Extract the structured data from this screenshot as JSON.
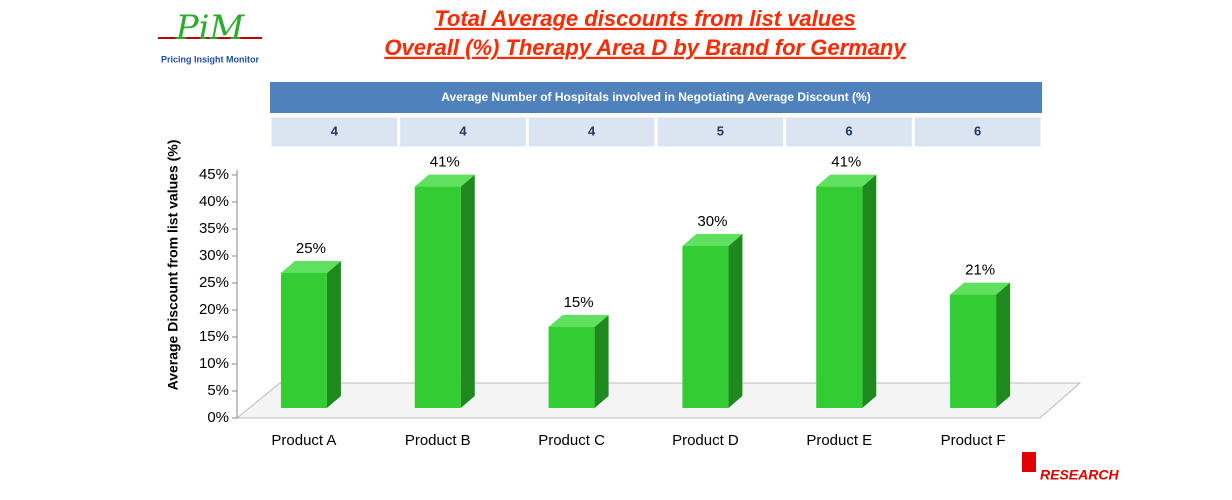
{
  "logo": {
    "mark": "PiM",
    "text": "Pricing Insight Monitor"
  },
  "brand": "RESEARCH",
  "table": {
    "header": "Average Number of Hospitals involved in Negotiating Average Discount (%)",
    "values": [
      4,
      4,
      4,
      5,
      6,
      6
    ]
  },
  "chart_data": {
    "type": "bar",
    "title": "Total Average discounts from list values",
    "subtitle": "Overall (%) Therapy Area D by Brand for Germany",
    "y_label": "Average Discount from list values (%)",
    "categories": [
      "Product A",
      "Product B",
      "Product C",
      "Product D",
      "Product E",
      "Product F"
    ],
    "values": [
      25,
      41,
      15,
      30,
      41,
      21
    ],
    "value_labels": [
      "25%",
      "41%",
      "15%",
      "30%",
      "41%",
      "21%"
    ],
    "color": "#33cc33",
    "ylim": [
      0,
      45
    ],
    "yticks": [
      {
        "value": 0,
        "label": "0%"
      },
      {
        "value": 5,
        "label": "5%"
      },
      {
        "value": 10,
        "label": "10%"
      },
      {
        "value": 15,
        "label": "15%"
      },
      {
        "value": 20,
        "label": "20%"
      },
      {
        "value": 25,
        "label": "25%"
      },
      {
        "value": 30,
        "label": "30%"
      },
      {
        "value": 35,
        "label": "35%"
      },
      {
        "value": 40,
        "label": "40%"
      },
      {
        "value": 45,
        "label": "45%"
      }
    ]
  }
}
